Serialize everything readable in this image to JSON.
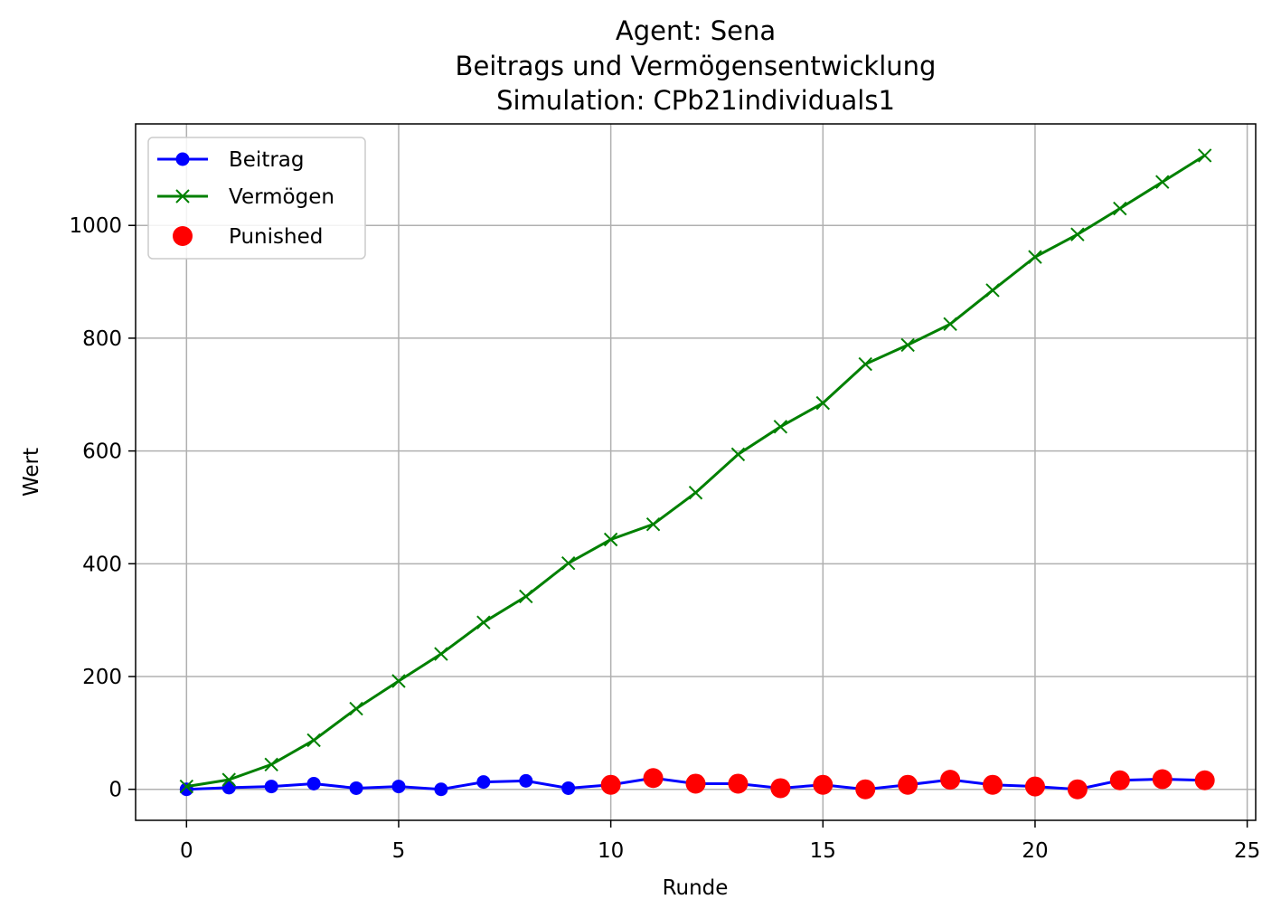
{
  "chart_data": {
    "type": "line",
    "title_lines": [
      "Agent: Sena",
      "Beitrags und Vermögensentwicklung",
      "Simulation: CPb21individuals1"
    ],
    "xlabel": "Runde",
    "ylabel": "Wert",
    "xlim": [
      -1.2,
      25.2
    ],
    "ylim": [
      -55,
      1180
    ],
    "xticks": [
      0,
      5,
      10,
      15,
      20,
      25
    ],
    "yticks": [
      0,
      200,
      400,
      600,
      800,
      1000
    ],
    "grid": true,
    "legend_position": "upper-left",
    "x": [
      0,
      1,
      2,
      3,
      4,
      5,
      6,
      7,
      8,
      9,
      10,
      11,
      12,
      13,
      14,
      15,
      16,
      17,
      18,
      19,
      20,
      21,
      22,
      23,
      24
    ],
    "series": [
      {
        "name": "Beitrag",
        "color": "#0000ff",
        "marker": "circle",
        "values": [
          0,
          3,
          5,
          10,
          2,
          5,
          0,
          13,
          15,
          2,
          8,
          20,
          10,
          10,
          2,
          8,
          0,
          8,
          17,
          8,
          5,
          0,
          16,
          18,
          16
        ]
      },
      {
        "name": "Vermögen",
        "color": "#008000",
        "marker": "x",
        "values": [
          5,
          17,
          44,
          87,
          143,
          192,
          240,
          296,
          342,
          401,
          443,
          470,
          526,
          594,
          643,
          685,
          754,
          788,
          825,
          885,
          944,
          984,
          1030,
          1077,
          1124
        ]
      }
    ],
    "punished": {
      "name": "Punished",
      "color": "#ff0000",
      "marker": "circle-large",
      "x": [
        10,
        11,
        12,
        13,
        14,
        15,
        16,
        17,
        18,
        19,
        20,
        21,
        22,
        23,
        24
      ],
      "values": [
        8,
        20,
        10,
        10,
        2,
        8,
        0,
        8,
        17,
        8,
        5,
        0,
        16,
        18,
        16
      ]
    }
  }
}
